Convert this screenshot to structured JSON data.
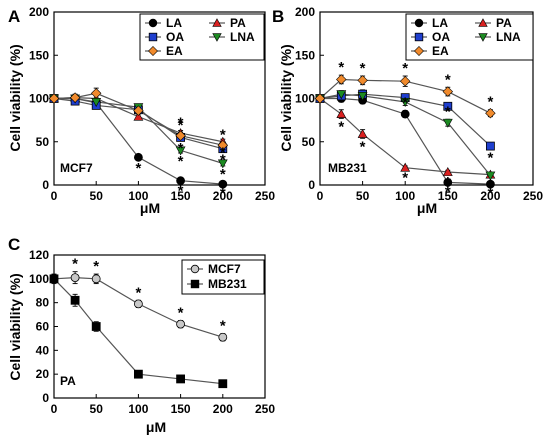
{
  "colors": {
    "LA": "#000000",
    "PA": "#d92020",
    "OA": "#1f3fcf",
    "LNA": "#1c8a22",
    "EA": "#f08a2c",
    "MCF7": "#c8c8c8",
    "MB231": "#000000",
    "line": "#555555"
  },
  "chart_data": [
    {
      "panel": "A",
      "type": "line",
      "cell_line": "MCF7",
      "xlabel": "μM",
      "ylabel": "Cell viability (%)",
      "xlim": [
        0,
        250
      ],
      "ylim": [
        0,
        200
      ],
      "xticks": [
        "0",
        "50",
        "100",
        "150",
        "200",
        "250"
      ],
      "yticks": [
        "0",
        "50",
        "100",
        "150",
        "200"
      ],
      "legend_position": "top-right",
      "x": [
        0,
        25,
        50,
        100,
        150,
        200
      ],
      "series": [
        {
          "name": "LA",
          "marker": "circle",
          "values": [
            100,
            100,
            95,
            32,
            5,
            1
          ],
          "errors": [
            4,
            4,
            4,
            3,
            2,
            1
          ],
          "stars": [
            false,
            false,
            false,
            true,
            true,
            true
          ]
        },
        {
          "name": "PA",
          "marker": "triangle-up",
          "values": [
            100,
            101,
            100,
            79,
            60,
            50
          ],
          "errors": [
            3,
            3,
            3,
            3,
            3,
            3
          ],
          "stars": [
            false,
            false,
            false,
            false,
            true,
            true
          ]
        },
        {
          "name": "OA",
          "marker": "square",
          "values": [
            100,
            97,
            92,
            87,
            55,
            42
          ],
          "errors": [
            3,
            4,
            4,
            3,
            3,
            3
          ],
          "stars": [
            false,
            false,
            false,
            false,
            true,
            true
          ]
        },
        {
          "name": "LNA",
          "marker": "triangle-down",
          "values": [
            100,
            100,
            96,
            90,
            40,
            25
          ],
          "errors": [
            3,
            3,
            4,
            3,
            3,
            3
          ],
          "stars": [
            false,
            false,
            false,
            false,
            true,
            true
          ]
        },
        {
          "name": "EA",
          "marker": "diamond",
          "values": [
            100,
            101,
            106,
            86,
            57,
            46
          ],
          "errors": [
            3,
            4,
            6,
            3,
            3,
            3
          ],
          "stars": [
            false,
            false,
            false,
            false,
            true,
            true
          ]
        }
      ]
    },
    {
      "panel": "B",
      "type": "line",
      "cell_line": "MB231",
      "xlabel": "μM",
      "ylabel": "Cell viability (%)",
      "xlim": [
        0,
        250
      ],
      "ylim": [
        0,
        200
      ],
      "xticks": [
        "0",
        "50",
        "100",
        "150",
        "200",
        "250"
      ],
      "yticks": [
        "0",
        "50",
        "100",
        "150",
        "200"
      ],
      "legend_position": "top-right",
      "x": [
        0,
        25,
        50,
        100,
        150,
        200
      ],
      "series": [
        {
          "name": "LA",
          "marker": "circle",
          "values": [
            100,
            100,
            98,
            82,
            3,
            1
          ],
          "errors": [
            3,
            4,
            4,
            4,
            1,
            1
          ],
          "stars": [
            false,
            false,
            false,
            true,
            true,
            true
          ]
        },
        {
          "name": "PA",
          "marker": "triangle-up",
          "values": [
            100,
            82,
            59,
            20,
            15,
            12
          ],
          "errors": [
            3,
            5,
            5,
            2,
            2,
            2
          ],
          "stars": [
            false,
            true,
            true,
            true,
            true,
            true
          ]
        },
        {
          "name": "OA",
          "marker": "square",
          "values": [
            100,
            103,
            105,
            101,
            91,
            45
          ],
          "errors": [
            3,
            4,
            5,
            4,
            4,
            4
          ],
          "stars": [
            false,
            false,
            false,
            false,
            false,
            true
          ]
        },
        {
          "name": "LNA",
          "marker": "triangle-down",
          "values": [
            100,
            105,
            103,
            96,
            72,
            11
          ],
          "errors": [
            3,
            4,
            4,
            4,
            4,
            2
          ],
          "stars": [
            false,
            false,
            false,
            false,
            true,
            true
          ]
        },
        {
          "name": "EA",
          "marker": "diamond",
          "values": [
            100,
            122,
            121,
            120,
            108,
            83
          ],
          "errors": [
            3,
            5,
            5,
            6,
            5,
            4
          ],
          "stars": [
            false,
            true,
            true,
            true,
            true,
            true
          ]
        }
      ]
    },
    {
      "panel": "C",
      "type": "line",
      "cell_line": "PA",
      "xlabel": "μM",
      "ylabel": "Cell viability (%)",
      "xlim": [
        0,
        250
      ],
      "ylim": [
        0,
        120
      ],
      "xticks": [
        "0",
        "50",
        "100",
        "150",
        "200",
        "250"
      ],
      "yticks": [
        "0",
        "20",
        "40",
        "60",
        "80",
        "100",
        "120"
      ],
      "legend_position": "top-right",
      "x": [
        0,
        25,
        50,
        100,
        150,
        200
      ],
      "series": [
        {
          "name": "MCF7",
          "marker": "circle",
          "values": [
            100,
            101,
            100,
            79,
            62,
            51
          ],
          "errors": [
            3,
            5,
            4,
            3,
            3,
            3
          ],
          "stars": [
            false,
            true,
            true,
            true,
            true,
            true
          ]
        },
        {
          "name": "MB231",
          "marker": "square",
          "values": [
            100,
            82,
            60,
            20,
            16,
            12
          ],
          "errors": [
            4,
            5,
            4,
            2,
            2,
            2
          ],
          "stars": [
            false,
            false,
            false,
            false,
            false,
            false
          ]
        }
      ]
    }
  ],
  "star_symbol": "*"
}
